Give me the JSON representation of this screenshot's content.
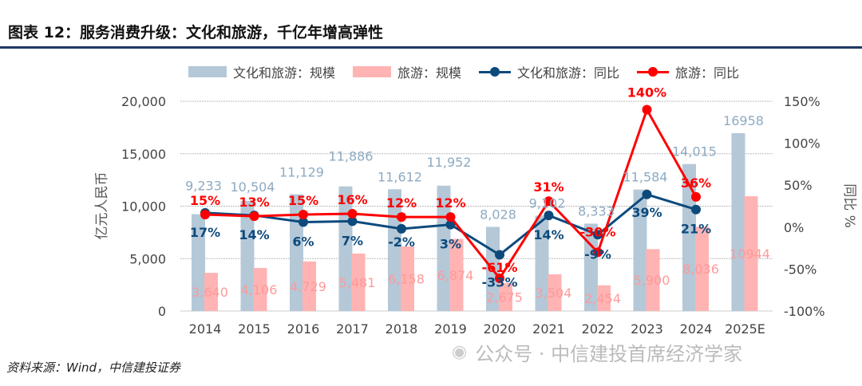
{
  "title": "图表 12：服务消费升级：文化和旅游，千亿年增高弹性",
  "source": "资料来源：Wind，中信建投证券",
  "watermark": "公众号 · 中信建投首席经济学家",
  "chart_data": {
    "type": "bar+line",
    "categories": [
      "2014",
      "2015",
      "2016",
      "2017",
      "2018",
      "2019",
      "2020",
      "2021",
      "2022",
      "2023",
      "2024",
      "2025E"
    ],
    "ylabel": "亿元人民币",
    "ylabel_right": "同比 %",
    "ylim": [
      0,
      20000
    ],
    "yticks": [
      "0",
      "5,000",
      "10,000",
      "15,000",
      "20,000"
    ],
    "ylim_right": [
      -100,
      150
    ],
    "yticks_right": [
      "-100%",
      "-50%",
      "0%",
      "50%",
      "100%",
      "150%"
    ],
    "grid": true,
    "legend": "top",
    "series": [
      {
        "name": "文化和旅游：规模",
        "type": "bar",
        "color": "#b4c8d8",
        "label_color": "#8eaac2",
        "values": [
          9233,
          10504,
          11129,
          11886,
          11612,
          11952,
          8028,
          9102,
          8333,
          11584,
          14015,
          16958
        ],
        "labels": [
          "9,233",
          "10,504",
          "11,129",
          "11,886",
          "11,612",
          "11,952",
          "8,028",
          "9,102",
          "8,333",
          "11,584",
          "14,015",
          "16958"
        ]
      },
      {
        "name": "旅游：规模",
        "type": "bar",
        "color": "#ffb3b3",
        "label_color": "#ff9a9a",
        "values": [
          3640,
          4106,
          4729,
          5481,
          6158,
          6874,
          2675,
          3504,
          2454,
          5900,
          8036,
          10944
        ],
        "labels": [
          "3,640",
          "4,106",
          "4,729",
          "5,481",
          "6,158",
          "6,874",
          "2,675",
          "3,504",
          "2,454",
          "5,900",
          "8,036",
          "10944"
        ]
      },
      {
        "name": "文化和旅游：同比",
        "type": "line",
        "axis": "right",
        "color": "#0d4a7c",
        "values": [
          17,
          14,
          6,
          7,
          -2,
          3,
          -33,
          14,
          -9,
          39,
          21,
          null
        ]
      },
      {
        "name": "旅游：同比",
        "type": "line",
        "axis": "right",
        "color": "#ff0000",
        "values": [
          15,
          13,
          15,
          16,
          12,
          12,
          -61,
          31,
          -30,
          140,
          36,
          null
        ]
      }
    ]
  }
}
